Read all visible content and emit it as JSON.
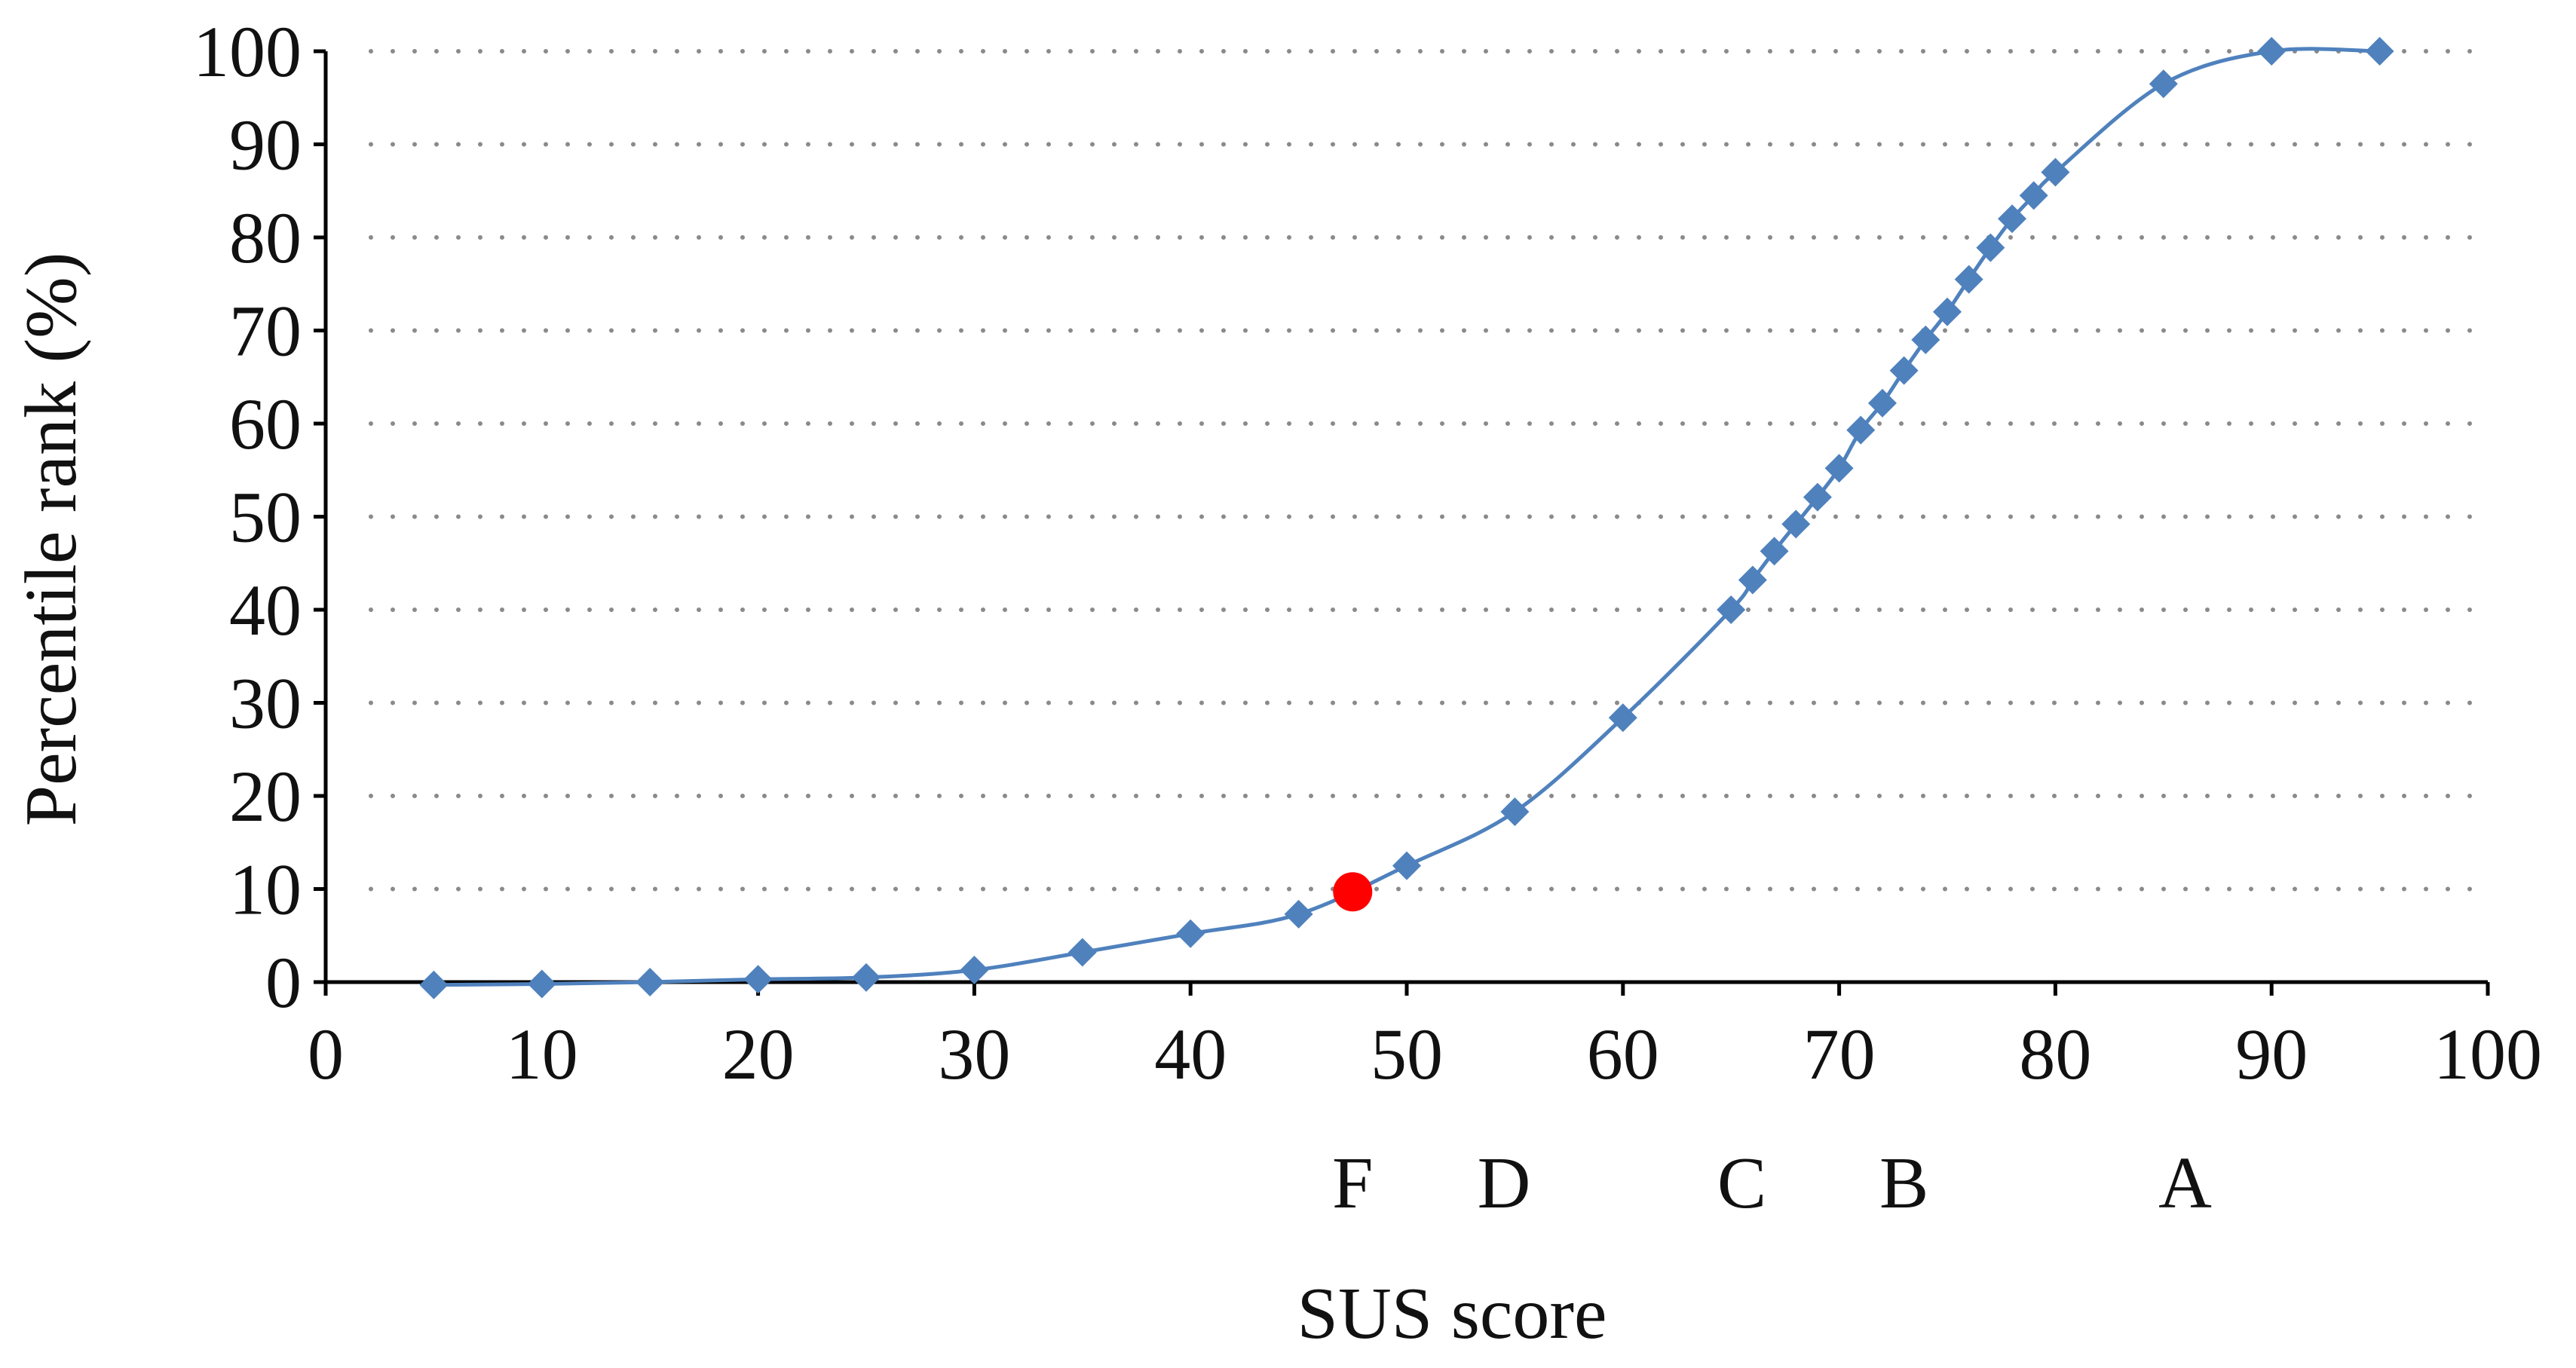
{
  "chart_data": {
    "type": "line",
    "title": "",
    "xlabel": "SUS score",
    "ylabel": "Percentile rank (%)",
    "xlim": [
      0,
      100
    ],
    "ylim": [
      0,
      100
    ],
    "x_ticks": [
      "0",
      "10",
      "20",
      "30",
      "40",
      "50",
      "60",
      "70",
      "80",
      "90",
      "100"
    ],
    "y_ticks": [
      "0",
      "10",
      "20",
      "30",
      "40",
      "50",
      "60",
      "70",
      "80",
      "90",
      "100"
    ],
    "grid": "horizontal-dotted",
    "series": [
      {
        "color": "#4f81bd",
        "marker": "diamond",
        "smooth": true,
        "x": [
          5,
          10,
          15,
          20,
          25,
          30,
          35,
          40,
          45,
          50,
          55,
          60,
          65,
          66,
          67,
          68,
          69,
          70,
          71,
          72,
          73,
          74,
          75,
          76,
          77,
          78,
          79,
          80,
          85,
          90,
          95
        ],
        "y": [
          -0.3,
          -0.2,
          0,
          0.3,
          0.5,
          1.3,
          3.2,
          5.2,
          7.3,
          12.5,
          18.3,
          28.4,
          40,
          43.2,
          46.3,
          49.2,
          52.1,
          55.2,
          59.3,
          62.2,
          65.7,
          69,
          72,
          75.5,
          78.9,
          82,
          84.5,
          87,
          96.5,
          100,
          100
        ]
      }
    ],
    "highlight_point": {
      "x": 47.5,
      "y": 9.7,
      "color": "#ff0000"
    },
    "grades": [
      {
        "label": "F",
        "x": 47.5
      },
      {
        "label": "D",
        "x": 54.5
      },
      {
        "label": "C",
        "x": 65.5
      },
      {
        "label": "B",
        "x": 73
      },
      {
        "label": "A",
        "x": 86
      }
    ]
  }
}
